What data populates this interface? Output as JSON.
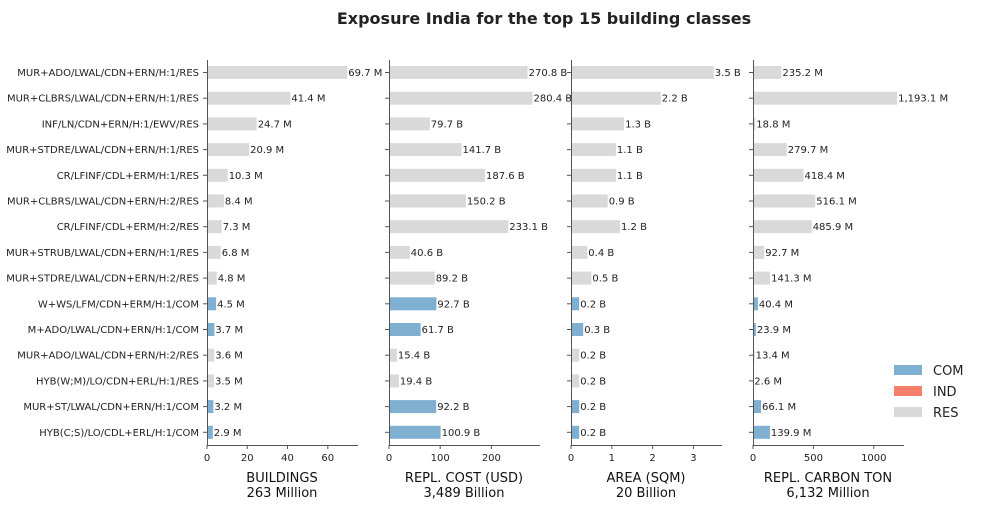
{
  "chart_data": {
    "type": "bar",
    "orientation": "horizontal",
    "title": "Exposure India for the top 15 building classes",
    "colors": {
      "COM": "#7fb0d2",
      "IND": "#f47f6b",
      "RES": "#d9d9d9"
    },
    "legend": {
      "placement": "right",
      "entries": [
        "COM",
        "IND",
        "RES"
      ]
    },
    "categories": [
      "MUR+ADO/LWAL/CDN+ERN/H:1/RES",
      "MUR+CLBRS/LWAL/CDN+ERN/H:1/RES",
      "INF/LN/CDN+ERN/H:1/EWV/RES",
      "MUR+STDRE/LWAL/CDN+ERN/H:1/RES",
      "CR/LFINF/CDL+ERM/H:1/RES",
      "MUR+CLBRS/LWAL/CDN+ERN/H:2/RES",
      "CR/LFINF/CDL+ERM/H:2/RES",
      "MUR+STRUB/LWAL/CDN+ERN/H:1/RES",
      "MUR+STDRE/LWAL/CDN+ERN/H:2/RES",
      "W+WS/LFM/CDN+ERM/H:1/COM",
      "M+ADO/LWAL/CDN+ERN/H:1/COM",
      "MUR+ADO/LWAL/CDN+ERN/H:2/RES",
      "HYB(W;M)/LO/CDN+ERL/H:1/RES",
      "MUR+ST/LWAL/CDN+ERN/H:1/COM",
      "HYB(C;S)/LO/CDL+ERL/H:1/COM"
    ],
    "occupancy": [
      "RES",
      "RES",
      "RES",
      "RES",
      "RES",
      "RES",
      "RES",
      "RES",
      "RES",
      "COM",
      "COM",
      "RES",
      "RES",
      "COM",
      "COM"
    ],
    "panels": [
      {
        "xlabel": "BUILDINGS",
        "total": "263 Million",
        "xlim": [
          0,
          75
        ],
        "ticks": [
          0,
          20,
          40,
          60
        ],
        "tick_labels": [
          "0",
          "20",
          "40",
          "60"
        ],
        "values": [
          69.7,
          41.4,
          24.7,
          20.9,
          10.3,
          8.4,
          7.3,
          6.8,
          4.8,
          4.5,
          3.7,
          3.6,
          3.5,
          3.2,
          2.9
        ],
        "labels": [
          "69.7 M",
          "41.4 M",
          "24.7 M",
          "20.9 M",
          "10.3 M",
          "8.4 M",
          "7.3 M",
          "6.8 M",
          "4.8 M",
          "4.5 M",
          "3.7 M",
          "3.6 M",
          "3.5 M",
          "3.2 M",
          "2.9 M"
        ]
      },
      {
        "xlabel": "REPL. COST (USD)",
        "total": "3,489 Billion",
        "xlim": [
          0,
          295
        ],
        "ticks": [
          0,
          100,
          200
        ],
        "tick_labels": [
          "0",
          "100",
          "200"
        ],
        "values": [
          270.8,
          280.4,
          79.7,
          141.7,
          187.6,
          150.2,
          233.1,
          40.6,
          89.2,
          92.7,
          61.7,
          15.4,
          19.4,
          92.2,
          100.9
        ],
        "labels": [
          "270.8 B",
          "280.4 B",
          "79.7 B",
          "141.7 B",
          "187.6 B",
          "150.2 B",
          "233.1 B",
          "40.6 B",
          "89.2 B",
          "92.7 B",
          "61.7 B",
          "15.4 B",
          "19.4 B",
          "92.2 B",
          "100.9 B"
        ]
      },
      {
        "xlabel": "AREA (SQM)",
        "total": "20 Billion",
        "xlim": [
          0,
          3.7
        ],
        "ticks": [
          0,
          1,
          2,
          3
        ],
        "tick_labels": [
          "0",
          "1",
          "2",
          "3"
        ],
        "values": [
          3.5,
          2.2,
          1.3,
          1.1,
          1.1,
          0.9,
          1.2,
          0.4,
          0.5,
          0.2,
          0.3,
          0.2,
          0.2,
          0.2,
          0.2
        ],
        "labels": [
          "3.5 B",
          "2.2 B",
          "1.3 B",
          "1.1 B",
          "1.1 B",
          "0.9 B",
          "1.2 B",
          "0.4 B",
          "0.5 B",
          "0.2 B",
          "0.3 B",
          "0.2 B",
          "0.2 B",
          "0.2 B",
          "0.2 B"
        ]
      },
      {
        "xlabel": "REPL. CARBON TON",
        "total": "6,132 Million",
        "xlim": [
          0,
          1250
        ],
        "ticks": [
          0,
          500,
          1000
        ],
        "tick_labels": [
          "0",
          "500",
          "1000"
        ],
        "values": [
          235.2,
          1193.1,
          18.8,
          279.7,
          418.4,
          516.1,
          485.9,
          92.7,
          141.3,
          40.4,
          23.9,
          13.4,
          2.6,
          66.1,
          139.9
        ],
        "labels": [
          "235.2 M",
          "1,193.1 M",
          "18.8 M",
          "279.7 M",
          "418.4 M",
          "516.1 M",
          "485.9 M",
          "92.7 M",
          "141.3 M",
          "40.4 M",
          "23.9 M",
          "13.4 M",
          "2.6 M",
          "66.1 M",
          "139.9 M"
        ]
      }
    ]
  }
}
